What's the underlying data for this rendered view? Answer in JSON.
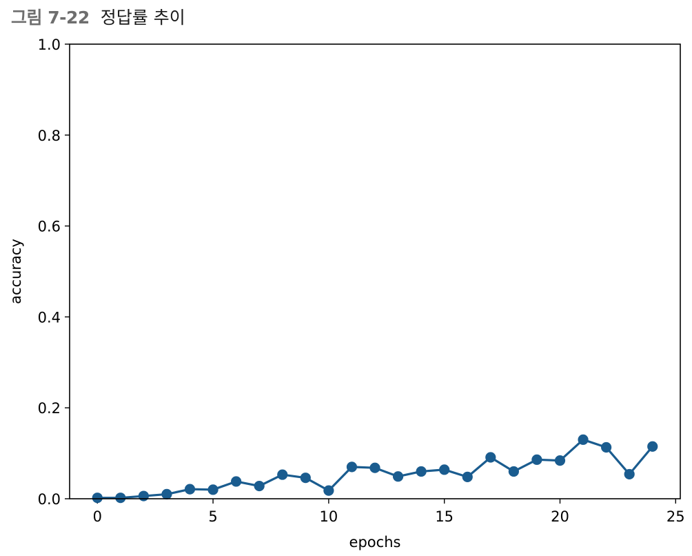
{
  "figure": {
    "number": "그림 7-22",
    "title": "정답률 추이"
  },
  "chart_data": {
    "type": "line",
    "xlabel": "epochs",
    "ylabel": "accuracy",
    "xlim": [
      -1.2,
      25.2
    ],
    "ylim": [
      0,
      1.0
    ],
    "x_ticks": [
      0,
      5,
      10,
      15,
      20,
      25
    ],
    "y_ticks": [
      0.0,
      0.2,
      0.4,
      0.6,
      0.8,
      1.0
    ],
    "x_tick_labels": [
      "0",
      "5",
      "10",
      "15",
      "20",
      "25"
    ],
    "y_tick_labels": [
      "0.0",
      "0.2",
      "0.4",
      "0.6",
      "0.8",
      "1.0"
    ],
    "grid": false,
    "marker": "circle",
    "color": "#1a5c8f",
    "series": [
      {
        "x": [
          0,
          1,
          2,
          3,
          4,
          5,
          6,
          7,
          8,
          9,
          10,
          11,
          12,
          13,
          14,
          15,
          16,
          17,
          18,
          19,
          20,
          21,
          22,
          23,
          24
        ],
        "values": [
          0.002,
          0.002,
          0.006,
          0.01,
          0.021,
          0.02,
          0.038,
          0.028,
          0.053,
          0.046,
          0.018,
          0.07,
          0.068,
          0.049,
          0.06,
          0.064,
          0.048,
          0.091,
          0.06,
          0.086,
          0.084,
          0.13,
          0.113,
          0.054,
          0.115
        ]
      }
    ]
  }
}
